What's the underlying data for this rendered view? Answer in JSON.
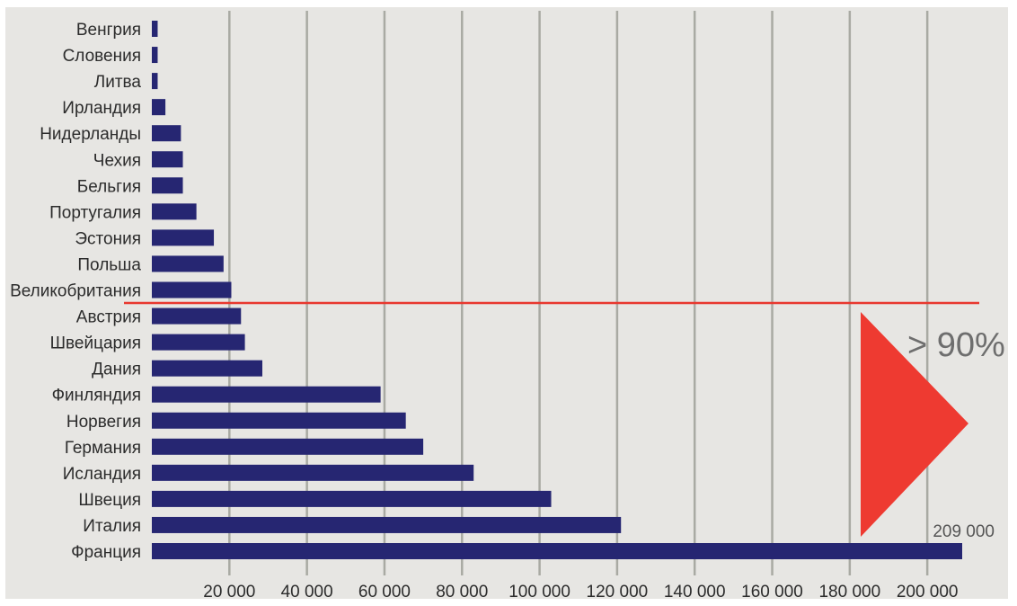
{
  "chart_data": {
    "type": "bar",
    "orientation": "horizontal",
    "categories": [
      "Венгрия",
      "Словения",
      "Литва",
      "Ирландия",
      "Нидерланды",
      "Чехия",
      "Бельгия",
      "Португалия",
      "Эстония",
      "Польша",
      "Великобритания",
      "Австрия",
      "Швейцария",
      "Дания",
      "Финляндия",
      "Норвегия",
      "Германия",
      "Исландия",
      "Швеция",
      "Италия",
      "Франция"
    ],
    "values": [
      1500,
      1500,
      1500,
      3500,
      7500,
      8000,
      8000,
      11500,
      16000,
      18500,
      20500,
      23000,
      24000,
      28500,
      59000,
      65500,
      70000,
      83000,
      103000,
      121000,
      209000
    ],
    "xlim": [
      0,
      209000
    ],
    "xticks": [
      "20 000",
      "40 000",
      "60 000",
      "80 000",
      "100 000",
      "120 000",
      "140 000",
      "160 000",
      "180 000",
      "200 000"
    ],
    "xtick_values": [
      20000,
      40000,
      60000,
      80000,
      100000,
      120000,
      140000,
      160000,
      180000,
      200000
    ],
    "grid": "vertical",
    "annotations": {
      "max_value_label": "209 000",
      "percent_label": "> 90%",
      "threshold_after_category": "Великобритания"
    },
    "colors": {
      "bar": "#262672",
      "grid": "#a9aaa3",
      "threshold_line": "#e8382e",
      "triangle": "#ee3a31",
      "background": "#e7e6e3"
    }
  }
}
